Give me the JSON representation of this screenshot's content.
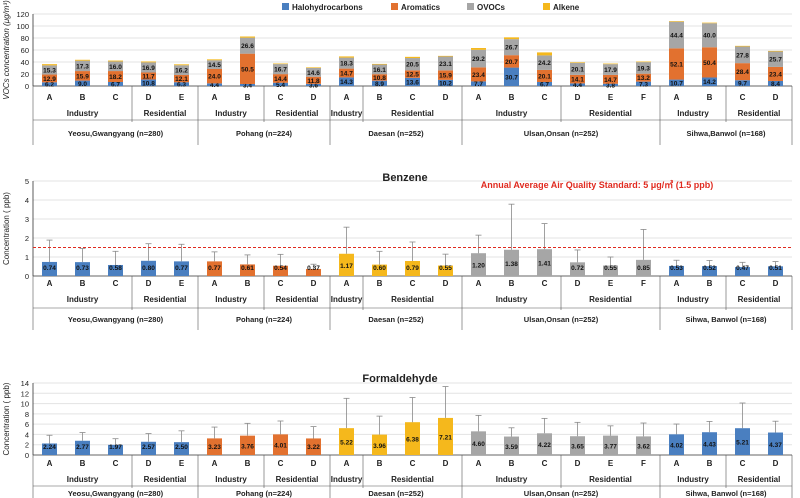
{
  "colors": {
    "halo": "#4a7fc0",
    "arom": "#e2712f",
    "ovoc": "#a6a6a6",
    "alk": "#f5b81c",
    "ref": "#e02b20",
    "grid": "#e3e3e3",
    "axis": "#333333"
  },
  "groups": {
    "x_labels": [
      "A",
      "B",
      "C",
      "D",
      "E",
      "A",
      "B",
      "C",
      "D",
      "A",
      "B",
      "C",
      "D",
      "A",
      "B",
      "C",
      "D",
      "E",
      "F",
      "A",
      "B",
      "C",
      "D"
    ],
    "site_types": [
      "Industry",
      "Residential",
      "Industry",
      "Residential",
      "Industry",
      "Residential",
      "Industry",
      "Residential",
      "Industry",
      "Residential"
    ],
    "cities": [
      "Yeosu,Gwangyang (n=280)",
      "Pohang (n=224)",
      "Daesan (n=252)",
      "Ulsan,Onsan (n=252)",
      "Sihwa,Banwol (n=168)"
    ],
    "cities_lower": [
      "Yeosu,Gwangyang (n=280)",
      "Pohang (n=224)",
      "Daesan (n=252)",
      "Ulsan,Onsan (n=252)",
      "Sihwa, Banwol (n=168)"
    ]
  },
  "chart_data": [
    {
      "type": "bar",
      "subtype": "stacked",
      "ylabel": "VOCs concentration (μg/m³)",
      "ylim": [
        0,
        120
      ],
      "yticks": [
        0,
        20,
        40,
        60,
        80,
        100,
        120
      ],
      "legend": [
        "Halohydrocarbons",
        "Aromatics",
        "OVOCs",
        "Alkene"
      ],
      "legend_position": "top-center",
      "series": [
        {
          "name": "Halohydrocarbons",
          "values": [
            6.2,
            9.0,
            6.7,
            10.8,
            6.3,
            4.4,
            3.4,
            5.4,
            3.6,
            14.3,
            8.9,
            13.6,
            10.2,
            7.7,
            30.7,
            6.7,
            4.4,
            3.8,
            7.3,
            10.7,
            14.2,
            9.7,
            8.4
          ]
        },
        {
          "name": "Aromatics",
          "values": [
            12.9,
            15.9,
            18.2,
            11.7,
            12.1,
            24.0,
            50.5,
            14.4,
            11.8,
            14.7,
            10.8,
            12.5,
            15.9,
            23.4,
            20.7,
            20.1,
            14.1,
            14.7,
            13.2,
            52.1,
            50.4,
            28.4,
            23.4
          ]
        },
        {
          "name": "OVOCs",
          "values": [
            15.3,
            17.3,
            16.0,
            16.9,
            16.2,
            14.5,
            26.6,
            16.7,
            14.6,
            18.3,
            16.1,
            20.5,
            23.1,
            29.2,
            26.7,
            24.2,
            20.1,
            17.9,
            19.3,
            44.4,
            40.0,
            27.8,
            25.7
          ]
        },
        {
          "name": "Alkene",
          "values": [
            2.0,
            1.5,
            1.5,
            1.5,
            1.5,
            1.5,
            2.0,
            1.0,
            1.0,
            2.0,
            1.0,
            2.0,
            1.0,
            3.0,
            3.0,
            5.0,
            1.0,
            1.0,
            1.0,
            1.0,
            1.0,
            1.0,
            1.0
          ]
        }
      ]
    },
    {
      "type": "bar",
      "title": "Benzene",
      "ylabel": "Concentration ( ppb)",
      "ylim": [
        0,
        5
      ],
      "yticks": [
        0,
        1,
        2,
        3,
        4,
        5
      ],
      "reference_line": {
        "value": 1.5,
        "label": "Annual Average Air Quality Standard: 5 μg/㎥ (1.5 ppb)"
      },
      "values": [
        0.74,
        0.73,
        0.58,
        0.8,
        0.77,
        0.77,
        0.61,
        0.54,
        0.37,
        1.17,
        0.6,
        0.79,
        0.55,
        1.2,
        1.38,
        1.41,
        0.72,
        0.55,
        0.85,
        0.53,
        0.52,
        0.47,
        0.51
      ],
      "errors": [
        1.15,
        0.72,
        0.72,
        0.9,
        0.9,
        0.5,
        0.5,
        0.6,
        0.25,
        1.4,
        0.7,
        1.0,
        0.6,
        0.95,
        2.4,
        1.35,
        0.65,
        0.45,
        1.6,
        0.3,
        0.3,
        0.25,
        0.25
      ],
      "value_labels": [
        "0.74",
        "0.73",
        "0.58",
        "0.80",
        "0.77",
        "0.77",
        "0.61",
        "0.54",
        "0.37",
        "1.17",
        "0.60",
        "0.79",
        "0.55",
        "1.20",
        "1.38",
        "1.41",
        "0.72",
        "0.55",
        "0.85",
        "0.53",
        "0.52",
        "0.47",
        "0.51"
      ]
    },
    {
      "type": "bar",
      "title": "Formaldehyde",
      "ylabel": "Concentration ( ppb)",
      "ylim": [
        0,
        14
      ],
      "yticks": [
        0,
        2,
        4,
        6,
        8,
        10,
        12,
        14
      ],
      "values": [
        2.24,
        2.77,
        1.97,
        2.57,
        2.5,
        3.23,
        3.76,
        4.01,
        3.22,
        5.22,
        3.96,
        6.38,
        7.21,
        4.6,
        3.59,
        4.22,
        3.65,
        3.77,
        3.62,
        4.02,
        4.43,
        5.21,
        4.37
      ],
      "errors": [
        1.6,
        1.6,
        1.2,
        1.6,
        2.2,
        2.2,
        2.4,
        2.6,
        2.3,
        5.8,
        3.6,
        4.8,
        6.1,
        3.1,
        1.7,
        2.9,
        2.7,
        1.9,
        2.6,
        2.0,
        2.1,
        4.9,
        2.2
      ],
      "value_labels": [
        "2.24",
        "2.77",
        "1.97",
        "2.57",
        "2.50",
        "3.23",
        "3.76",
        "4.01",
        "3.22",
        "5.22",
        "3.96",
        "6.38",
        "7.21",
        "4.60",
        "3.59",
        "4.22",
        "3.65",
        "3.77",
        "3.62",
        "4.02",
        "4.43",
        "5.21",
        "4.37"
      ]
    }
  ]
}
